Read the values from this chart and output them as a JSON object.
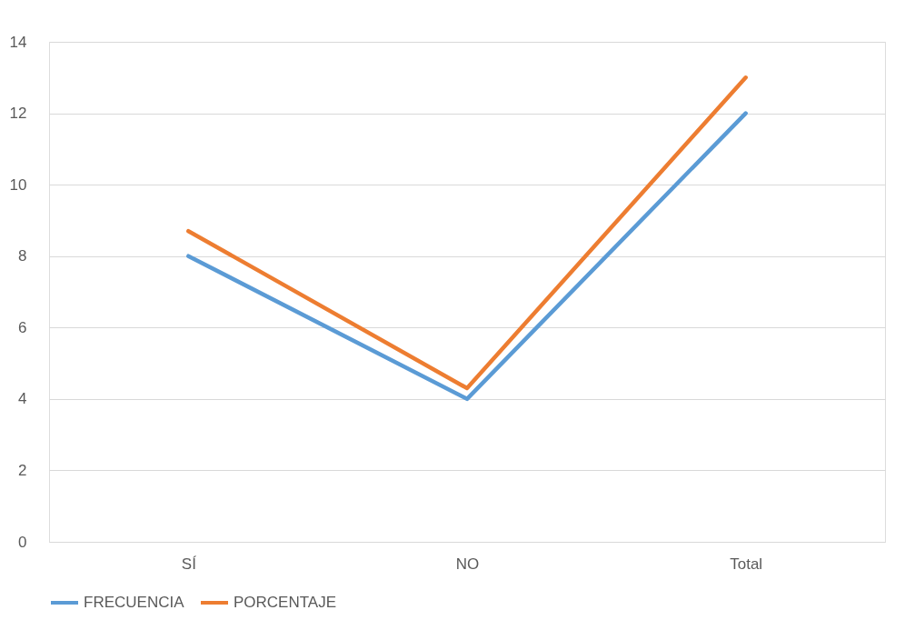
{
  "chart_data": {
    "type": "line",
    "categories": [
      "SÍ",
      "NO",
      "Total"
    ],
    "series": [
      {
        "name": "FRECUENCIA",
        "color": "#5b9bd5",
        "values": [
          8,
          4,
          12
        ]
      },
      {
        "name": "PORCENTAJE",
        "color": "#ed7d31",
        "values": [
          8.7,
          4.3,
          13
        ]
      }
    ],
    "ylim": [
      0,
      14
    ],
    "yticks": [
      0,
      2,
      4,
      6,
      8,
      10,
      12,
      14
    ],
    "grid": "y",
    "legend": "bottom",
    "marker": "none",
    "line_style": "solid"
  }
}
